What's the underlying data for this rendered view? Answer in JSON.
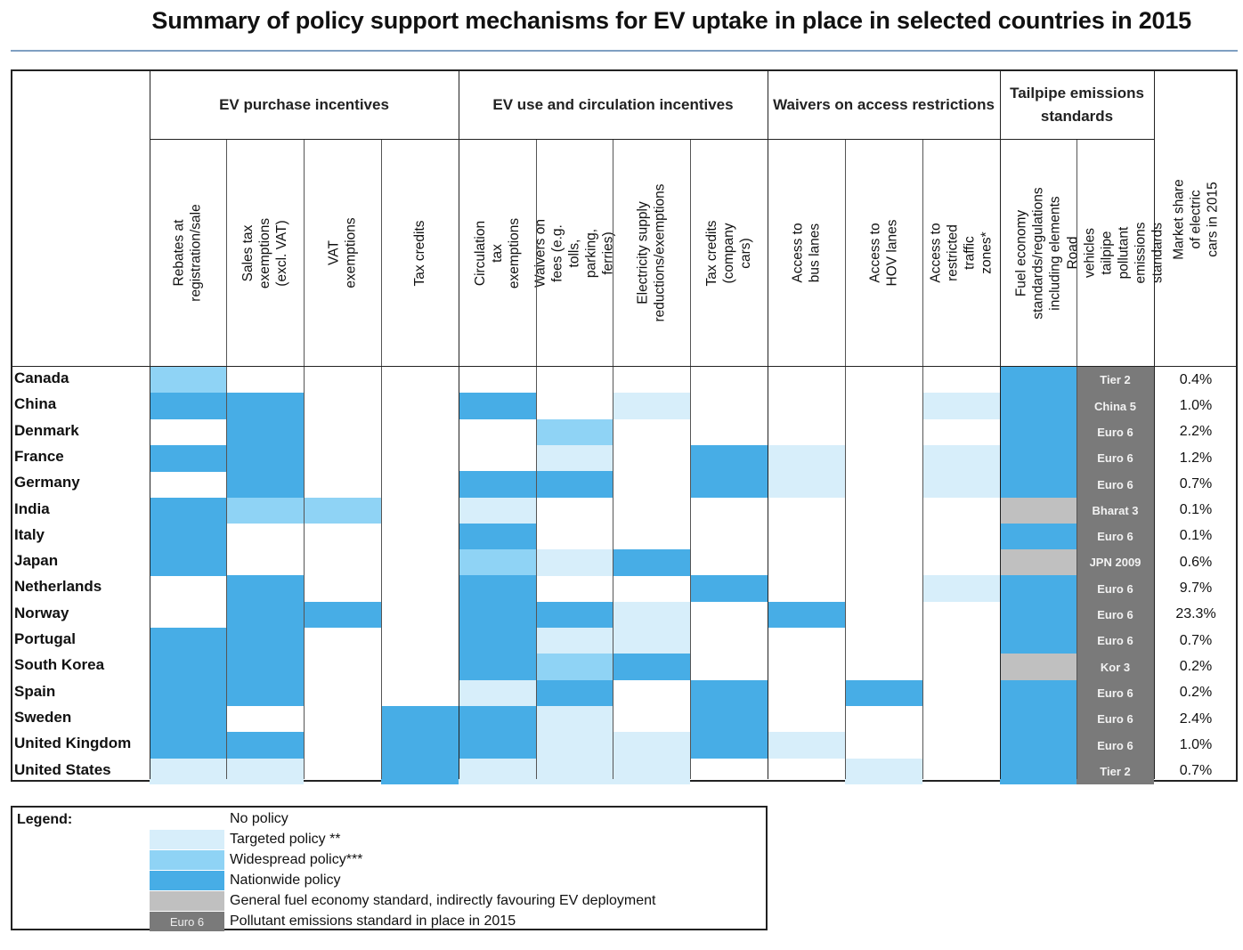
{
  "title": "Summary of policy support mechanisms for EV uptake in place in selected countries in 2015",
  "colors": {
    "no_policy": "#ffffff",
    "targeted": "#d7eefa",
    "widespread": "#8fd3f5",
    "nationwide": "#47ade6",
    "fuel_economy": "#c0c0c0",
    "pollutant_std": "#7a7a7a"
  },
  "groups": [
    {
      "label": "EV purchase incentives"
    },
    {
      "label": "EV use and circulation incentives"
    },
    {
      "label": "Waivers on access restrictions"
    },
    {
      "label": "Tailpipe emissions standards"
    }
  ],
  "columns": [
    {
      "label": "Rebates at registration/sale"
    },
    {
      "label": "Sales tax exemptions (excl. VAT)"
    },
    {
      "label": "VAT exemptions"
    },
    {
      "label": "Tax credits"
    },
    {
      "label": "Circulation tax exemptions"
    },
    {
      "label": "Waivers on fees (e.g. tolls, parking, ferries)"
    },
    {
      "label": "Electricity supply reductions/exemptions"
    },
    {
      "label": "Tax credits (company cars)"
    },
    {
      "label": "Access to bus lanes"
    },
    {
      "label": "Access to HOV lanes"
    },
    {
      "label": "Access to restricted traffic zones*"
    },
    {
      "label": "Fuel economy standards/regulations including elements"
    },
    {
      "label": "Road vehicles tailpipe pollutant emissions standards"
    },
    {
      "label": "Market share of electric cars in 2015"
    }
  ],
  "rows": [
    {
      "country": "Canada",
      "standard": "Tier 2",
      "share": "0.4%"
    },
    {
      "country": "China",
      "standard": "China 5",
      "share": "1.0%"
    },
    {
      "country": "Denmark",
      "standard": "Euro 6",
      "share": "2.2%"
    },
    {
      "country": "France",
      "standard": "Euro 6",
      "share": "1.2%"
    },
    {
      "country": "Germany",
      "standard": "Euro 6",
      "share": "0.7%"
    },
    {
      "country": "India",
      "standard": "Bharat 3",
      "share": "0.1%"
    },
    {
      "country": "Italy",
      "standard": "Euro 6",
      "share": "0.1%"
    },
    {
      "country": "Japan",
      "standard": "JPN 2009",
      "share": "0.6%"
    },
    {
      "country": "Netherlands",
      "standard": "Euro 6",
      "share": "9.7%"
    },
    {
      "country": "Norway",
      "standard": "Euro 6",
      "share": "23.3%"
    },
    {
      "country": "Portugal",
      "standard": "Euro 6",
      "share": "0.7%"
    },
    {
      "country": "South Korea",
      "standard": "Kor 3",
      "share": "0.2%"
    },
    {
      "country": "Spain",
      "standard": "Euro 6",
      "share": "0.2%"
    },
    {
      "country": "Sweden",
      "standard": "Euro 6",
      "share": "2.4%"
    },
    {
      "country": "United Kingdom",
      "standard": "Euro 6",
      "share": "1.0%"
    },
    {
      "country": "United States",
      "standard": "Tier 2",
      "share": "0.7%"
    }
  ],
  "grid": [
    "W..........N",
    "NN..N.T...TN",
    ".N...W.....N",
    "NN...T.NT.TN",
    ".N..NN.NT.TN",
    "NWW.T......G",
    "N...N......N",
    "N...WTN....G",
    ".N..N..N..TN",
    ".NN.NNT.N..N",
    "NN..NTT....N",
    "NN..NWN....G",
    "NN..TN.N.N.N",
    "N..NNT.N...N",
    "NN.NNTTNT..N",
    "TT.NTTT..T.N"
  ],
  "legend": {
    "title": "Legend:",
    "items": [
      {
        "key": "no_policy",
        "text": "No policy"
      },
      {
        "key": "targeted",
        "text": "Targeted policy **"
      },
      {
        "key": "widespread",
        "text": "Widespread policy***"
      },
      {
        "key": "nationwide",
        "text": "Nationwide policy"
      },
      {
        "key": "fuel_economy",
        "text": "General fuel economy standard, indirectly favouring EV deployment"
      },
      {
        "key": "pollutant_std",
        "text": "Pollutant emissions standard in place in 2015",
        "swatch_label": "Euro 6"
      }
    ]
  }
}
